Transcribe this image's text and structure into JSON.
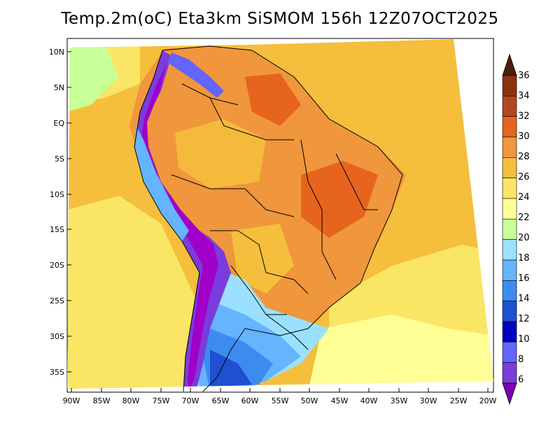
{
  "title": "Temp.2m(oC) Eta3km SiSMOM 156h 12Z07OCT2025",
  "map": {
    "lat_labels": [
      "10N",
      "5N",
      "EQ",
      "5S",
      "10S",
      "15S",
      "20S",
      "25S",
      "30S",
      "35S"
    ],
    "lon_labels": [
      "90W",
      "85W",
      "80W",
      "75W",
      "70W",
      "65W",
      "60W",
      "55W",
      "50W",
      "45W",
      "40W",
      "35W",
      "30W",
      "25W",
      "20W"
    ]
  },
  "colorbar": {
    "labels": [
      "6",
      "8",
      "10",
      "12",
      "14",
      "16",
      "18",
      "20",
      "22",
      "24",
      "26",
      "28",
      "30",
      "32",
      "34",
      "36"
    ],
    "colors": [
      "#a000c8",
      "#7a3cdc",
      "#6464ff",
      "#0000c0",
      "#1e50d2",
      "#3c8cf0",
      "#64b4ff",
      "#9be1ff",
      "#c8ff96",
      "#ffff96",
      "#fae664",
      "#f5be3c",
      "#f0963c",
      "#e6641e",
      "#b4461e",
      "#8c320f",
      "#6e2308"
    ],
    "below_color": "#7800b4",
    "above_color": "#4b1e0a"
  },
  "palette": {
    "ocean_warm": "#f5be3c",
    "ocean_mid": "#fae664",
    "ocean_cool": "#ffff96",
    "land_hot": "#f0963c",
    "andes": "#6464ff",
    "south_cold": "#64b4ff"
  }
}
